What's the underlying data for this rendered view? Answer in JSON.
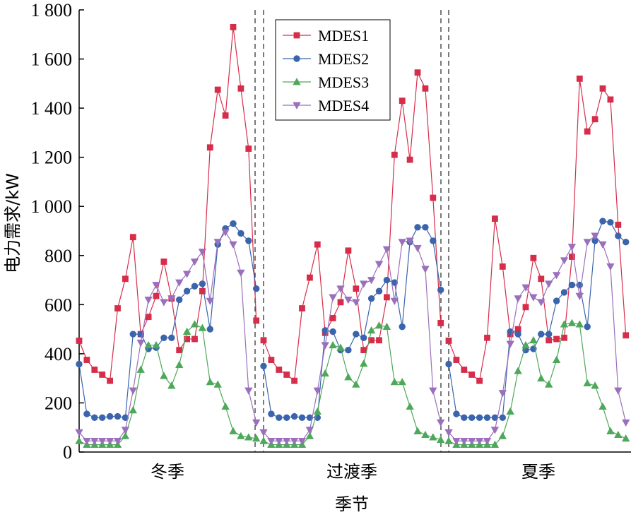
{
  "chart_data": {
    "type": "line",
    "title": "",
    "xlabel": "季节",
    "ylabel": "电力需求/kW",
    "ylim": [
      0,
      1800
    ],
    "yticks": [
      0,
      200,
      400,
      600,
      800,
      1000,
      1200,
      1400,
      1600,
      1800
    ],
    "ytick_labels": [
      "0",
      "200",
      "400",
      "600",
      "800",
      "1 000",
      "1 200",
      "1 400",
      "1 600",
      "1 800"
    ],
    "categories": [
      "冬季",
      "过渡季",
      "夏季"
    ],
    "hours_per_season": 24,
    "season_separator": "dashed",
    "grid": false,
    "legend_position": "top-center",
    "series": [
      {
        "name": "MDES1",
        "color": "#d62d4a",
        "marker": "square",
        "segments": [
          [
            453,
            375,
            335,
            315,
            290,
            585,
            705,
            875,
            480,
            550,
            635,
            775,
            625,
            415,
            460,
            460,
            655,
            1240,
            1475,
            1370,
            1730,
            1480,
            1235,
            535
          ],
          [
            455,
            375,
            335,
            315,
            290,
            585,
            710,
            845,
            485,
            545,
            610,
            820,
            665,
            415,
            455,
            455,
            630,
            1210,
            1430,
            1190,
            1545,
            1480,
            1035,
            525
          ],
          [
            453,
            375,
            335,
            315,
            290,
            465,
            950,
            755,
            480,
            500,
            590,
            790,
            705,
            455,
            460,
            465,
            795,
            1520,
            1305,
            1355,
            1480,
            1435,
            925,
            475
          ]
        ]
      },
      {
        "name": "MDES2",
        "color": "#3a64ac",
        "marker": "circle",
        "segments": [
          [
            358,
            155,
            140,
            140,
            145,
            145,
            140,
            480,
            480,
            420,
            425,
            465,
            465,
            620,
            655,
            675,
            685,
            500,
            845,
            910,
            930,
            890,
            860,
            665
          ],
          [
            350,
            155,
            140,
            140,
            145,
            140,
            140,
            140,
            495,
            490,
            415,
            415,
            480,
            465,
            625,
            655,
            700,
            690,
            510,
            855,
            915,
            915,
            860,
            660
          ],
          [
            358,
            155,
            140,
            140,
            140,
            140,
            140,
            140,
            490,
            480,
            415,
            420,
            480,
            480,
            615,
            650,
            680,
            680,
            510,
            860,
            940,
            935,
            880,
            855
          ]
        ]
      },
      {
        "name": "MDES3",
        "color": "#4ea85a",
        "marker": "triangle-up",
        "segments": [
          [
            45,
            30,
            30,
            30,
            30,
            30,
            65,
            170,
            335,
            435,
            435,
            310,
            270,
            355,
            490,
            520,
            505,
            285,
            275,
            185,
            85,
            65,
            60,
            55
          ],
          [
            45,
            30,
            30,
            30,
            30,
            30,
            65,
            165,
            320,
            435,
            425,
            305,
            275,
            360,
            495,
            515,
            510,
            285,
            285,
            185,
            85,
            70,
            60,
            50
          ],
          [
            45,
            30,
            30,
            30,
            30,
            30,
            30,
            65,
            165,
            330,
            435,
            455,
            300,
            275,
            375,
            520,
            525,
            520,
            280,
            270,
            185,
            85,
            70,
            55
          ]
        ]
      },
      {
        "name": "MDES4",
        "color": "#9a6fbc",
        "marker": "triangle-down",
        "segments": [
          [
            80,
            45,
            45,
            45,
            45,
            45,
            90,
            250,
            445,
            620,
            680,
            610,
            625,
            690,
            725,
            775,
            815,
            615,
            855,
            895,
            845,
            730,
            250,
            120
          ],
          [
            80,
            45,
            45,
            45,
            45,
            45,
            90,
            250,
            435,
            630,
            665,
            620,
            610,
            685,
            700,
            765,
            825,
            615,
            855,
            860,
            830,
            745,
            250,
            120
          ],
          [
            80,
            45,
            45,
            45,
            45,
            45,
            90,
            240,
            440,
            625,
            670,
            630,
            610,
            685,
            720,
            780,
            835,
            635,
            855,
            880,
            845,
            755,
            250,
            120
          ]
        ]
      }
    ]
  }
}
